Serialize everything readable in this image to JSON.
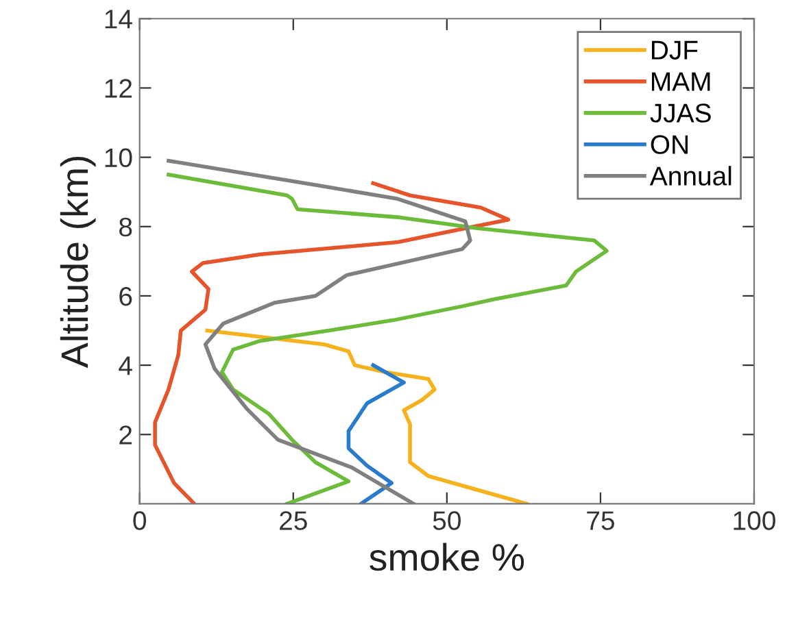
{
  "chart_data": {
    "type": "line",
    "xlabel": "smoke %",
    "ylabel": "Altitude (km)",
    "xlim": [
      0,
      100
    ],
    "xticks": [
      0,
      25,
      50,
      75,
      100
    ],
    "ylim": [
      0,
      14
    ],
    "yticks": [
      2,
      4,
      6,
      8,
      10,
      12,
      14
    ],
    "grid": false,
    "legend": "top right",
    "marker": "none",
    "line_style": "solid",
    "series": [
      {
        "name": "DJF",
        "color": "#f5b21c",
        "x": [
          63,
          55,
          47,
          44,
          44,
          44,
          43,
          46,
          48,
          47,
          40,
          35,
          34,
          30,
          11
        ],
        "values": [
          0,
          0.4,
          0.8,
          1.2,
          1.8,
          2.3,
          2.7,
          3.0,
          3.3,
          3.6,
          3.8,
          4.0,
          4.4,
          4.6,
          5.0
        ]
      },
      {
        "name": "MAM",
        "color": "#e5542a",
        "x": [
          8.9,
          5.6,
          2.5,
          2.5,
          4.7,
          6.3,
          6.7,
          10.7,
          11.2,
          8.5,
          10.3,
          19.7,
          42,
          53,
          60,
          55.5,
          44,
          38
        ],
        "values": [
          0,
          0.6,
          1.7,
          2.35,
          3.3,
          4.3,
          5.0,
          5.6,
          6.2,
          6.7,
          6.95,
          7.2,
          7.55,
          7.95,
          8.2,
          8.55,
          8.9,
          9.25
        ]
      },
      {
        "name": "JJAS",
        "color": "#6cbb3a",
        "x": [
          24,
          34,
          28.6,
          24.8,
          21,
          15.2,
          13.4,
          15.2,
          19.6,
          30.8,
          41.3,
          52.5,
          57.6,
          69.4,
          71,
          76,
          74,
          55,
          42,
          25.7,
          24.8,
          24,
          4.7
        ],
        "values": [
          0,
          0.65,
          1.2,
          1.85,
          2.6,
          3.3,
          3.8,
          4.45,
          4.7,
          5.0,
          5.3,
          5.7,
          5.9,
          6.3,
          6.7,
          7.3,
          7.6,
          7.95,
          8.27,
          8.5,
          8.8,
          8.9,
          9.5
        ]
      },
      {
        "name": "ON",
        "color": "#2a7bc9",
        "x": [
          36,
          41,
          37,
          34,
          34,
          37,
          43,
          38
        ],
        "values": [
          0,
          0.6,
          1.1,
          1.6,
          2.1,
          2.9,
          3.5,
          4.0
        ]
      },
      {
        "name": "Annual",
        "color": "#808080",
        "x": [
          44.6,
          34.5,
          22.5,
          17.4,
          12.2,
          10.7,
          13.6,
          21.9,
          28.6,
          33.7,
          52.5,
          53.8,
          53,
          42,
          28.6,
          4.7
        ],
        "values": [
          0,
          1.05,
          1.85,
          2.75,
          3.9,
          4.6,
          5.2,
          5.8,
          6.0,
          6.6,
          7.35,
          7.6,
          8.15,
          8.8,
          9.2,
          9.9
        ]
      }
    ]
  }
}
